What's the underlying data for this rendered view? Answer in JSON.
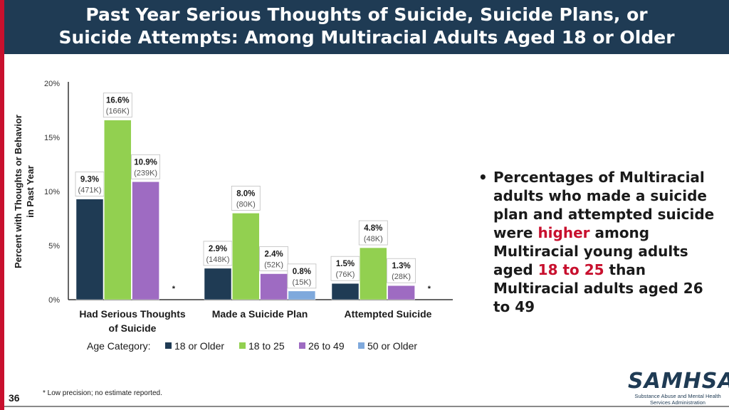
{
  "title": {
    "line1": "Past Year Serious Thoughts of Suicide, Suicide Plans, or",
    "line2": "Suicide Attempts: Among Multiracial Adults Aged 18 or Older"
  },
  "chart_data": {
    "type": "bar",
    "ylabel_line1": "Percent with Thoughts or Behavior",
    "ylabel_line2": "in Past Year",
    "ylim": [
      0,
      20
    ],
    "yticks": [
      0,
      5,
      10,
      15,
      20
    ],
    "ytick_labels": [
      "0%",
      "5%",
      "10%",
      "15%",
      "20%"
    ],
    "categories": [
      [
        "Had Serious Thoughts",
        "of Suicide"
      ],
      [
        "Made a Suicide Plan"
      ],
      [
        "Attempted Suicide"
      ]
    ],
    "legend_title": "Age Category:",
    "legend_placement": "bottom",
    "series": [
      {
        "name": "18 or Older",
        "color": "#1f3b54",
        "values": [
          9.3,
          2.9,
          1.5
        ],
        "pct_labels": [
          "9.3%",
          "2.9%",
          "1.5%"
        ],
        "count_labels": [
          "(471K)",
          "(148K)",
          "(76K)"
        ]
      },
      {
        "name": "18 to 25",
        "color": "#92d050",
        "values": [
          16.6,
          8.0,
          4.8
        ],
        "pct_labels": [
          "16.6%",
          "8.0%",
          "4.8%"
        ],
        "count_labels": [
          "(166K)",
          "(80K)",
          "(48K)"
        ]
      },
      {
        "name": "26 to 49",
        "color": "#9e6bc2",
        "values": [
          10.9,
          2.4,
          1.3
        ],
        "pct_labels": [
          "10.9%",
          "2.4%",
          "1.3%"
        ],
        "count_labels": [
          "(239K)",
          "(52K)",
          "(28K)"
        ]
      },
      {
        "name": "50 or Older",
        "color": "#7fa9dc",
        "values": [
          null,
          0.8,
          null
        ],
        "pct_labels": [
          "*",
          "0.8%",
          "*"
        ],
        "count_labels": [
          "",
          "(15K)",
          ""
        ]
      }
    ]
  },
  "bullet": {
    "dot": "•",
    "part1": "Percentages of Multiracial adults who made a suicide plan and attempted suicide were ",
    "highlight1": "higher",
    "part2": " among Multiracial young adults aged ",
    "highlight2": "18 to 25",
    "part3": " than Multiracial adults aged 26 to 49"
  },
  "footnote": "* Low precision; no estimate reported.",
  "page_number": "36",
  "logo": {
    "word": "SAMHSA",
    "sub_line1": "Substance Abuse and Mental Health",
    "sub_line2": "Services Administration"
  }
}
